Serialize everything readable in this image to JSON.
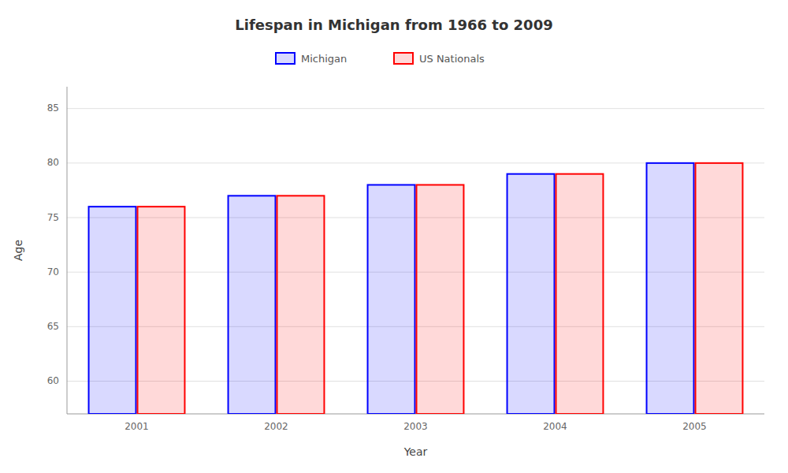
{
  "chart_data": {
    "type": "bar",
    "title": "Lifespan in Michigan from 1966 to 2009",
    "xlabel": "Year",
    "ylabel": "Age",
    "categories": [
      "2001",
      "2002",
      "2003",
      "2004",
      "2005"
    ],
    "series": [
      {
        "name": "Michigan",
        "color": "#0000ff",
        "values": [
          76,
          77,
          78,
          79,
          80
        ]
      },
      {
        "name": "US Nationals",
        "color": "#ff0000",
        "values": [
          76,
          77,
          78,
          79,
          80
        ]
      }
    ],
    "ylim": [
      57,
      87
    ],
    "yticks": [
      60,
      65,
      70,
      75,
      80,
      85
    ],
    "grid": true,
    "legend": "top"
  }
}
